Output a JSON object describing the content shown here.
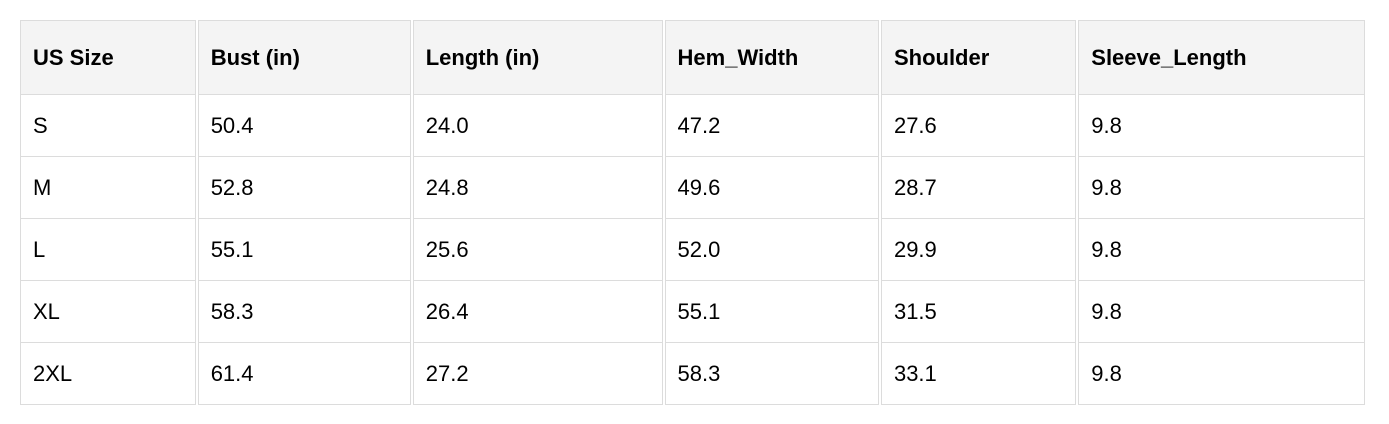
{
  "table": {
    "headers": [
      "US Size",
      "Bust (in)",
      "Length (in)",
      "Hem_Width",
      "Shoulder",
      "Sleeve_Length"
    ],
    "rows": [
      [
        "S",
        "50.4",
        "24.0",
        "47.2",
        "27.6",
        "9.8"
      ],
      [
        "M",
        "52.8",
        "24.8",
        "49.6",
        "28.7",
        "9.8"
      ],
      [
        "L",
        "55.1",
        "25.6",
        "52.0",
        "29.9",
        "9.8"
      ],
      [
        "XL",
        "58.3",
        "26.4",
        "55.1",
        "31.5",
        "9.8"
      ],
      [
        "2XL",
        "61.4",
        "27.2",
        "58.3",
        "33.1",
        "9.8"
      ]
    ]
  }
}
